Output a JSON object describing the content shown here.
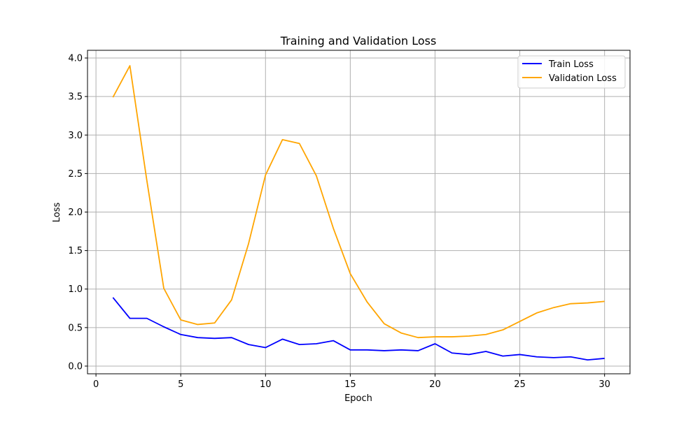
{
  "chart_data": {
    "type": "line",
    "title": "Training and Validation Loss",
    "xlabel": "Epoch",
    "ylabel": "Loss",
    "xlim": [
      -0.5,
      31.5
    ],
    "ylim": [
      -0.1,
      4.1
    ],
    "xticks": [
      0,
      5,
      10,
      15,
      20,
      25,
      30
    ],
    "yticks": [
      0.0,
      0.5,
      1.0,
      1.5,
      2.0,
      2.5,
      3.0,
      3.5,
      4.0
    ],
    "grid": true,
    "legend_position": "top-right",
    "x": [
      1,
      2,
      3,
      4,
      5,
      6,
      7,
      8,
      9,
      10,
      11,
      12,
      13,
      14,
      15,
      16,
      17,
      18,
      19,
      20,
      21,
      22,
      23,
      24,
      25,
      26,
      27,
      28,
      29,
      30
    ],
    "series": [
      {
        "name": "Train Loss",
        "color": "#0000ff",
        "values": [
          0.89,
          0.62,
          0.62,
          0.51,
          0.41,
          0.37,
          0.36,
          0.37,
          0.28,
          0.24,
          0.35,
          0.28,
          0.29,
          0.33,
          0.21,
          0.21,
          0.2,
          0.21,
          0.2,
          0.29,
          0.17,
          0.15,
          0.19,
          0.13,
          0.15,
          0.12,
          0.11,
          0.12,
          0.08,
          0.1
        ]
      },
      {
        "name": "Validation Loss",
        "color": "#ffa500",
        "values": [
          3.49,
          3.9,
          2.41,
          1.01,
          0.6,
          0.54,
          0.56,
          0.86,
          1.59,
          2.48,
          2.94,
          2.89,
          2.47,
          1.79,
          1.2,
          0.83,
          0.55,
          0.43,
          0.37,
          0.38,
          0.38,
          0.39,
          0.41,
          0.47,
          0.58,
          0.69,
          0.76,
          0.81,
          0.82,
          0.84
        ]
      }
    ]
  }
}
